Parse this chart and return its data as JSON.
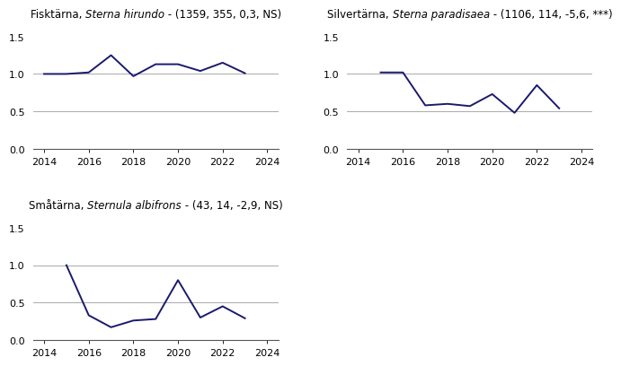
{
  "charts": [
    {
      "title_normal": "Fisktärna, ",
      "title_italic": "Sterna hirundo",
      "title_suffix": " - (1359, 355, 0,3, NS)",
      "x": [
        2014,
        2015,
        2016,
        2017,
        2018,
        2019,
        2020,
        2021,
        2022,
        2023
      ],
      "y": [
        1.0,
        1.0,
        1.02,
        1.25,
        0.97,
        1.13,
        1.13,
        1.04,
        1.15,
        1.01
      ]
    },
    {
      "title_normal": "Silvertärna, ",
      "title_italic": "Sterna paradisaea",
      "title_suffix": " - (1106, 114, -5,6, ***)",
      "x": [
        2015,
        2016,
        2017,
        2018,
        2019,
        2020,
        2021,
        2022,
        2023
      ],
      "y": [
        1.02,
        1.02,
        0.58,
        0.6,
        0.57,
        0.73,
        0.48,
        0.85,
        0.54
      ]
    },
    {
      "title_normal": "Småtärna, ",
      "title_italic": "Sternula albifrons",
      "title_suffix": " - (43, 14, -2,9, NS)",
      "x": [
        2015,
        2016,
        2017,
        2018,
        2019,
        2020,
        2021,
        2022,
        2023
      ],
      "y": [
        1.0,
        0.33,
        0.17,
        0.26,
        0.28,
        0.8,
        0.3,
        0.45,
        0.29
      ]
    }
  ],
  "line_color": "#1a1a6e",
  "hline_color": "#aaaaaa",
  "hline_values": [
    0.5,
    1.0
  ],
  "ylim": [
    0.0,
    1.65
  ],
  "yticks": [
    0.0,
    0.5,
    1.0,
    1.5
  ],
  "xlim": [
    2013.5,
    2024.5
  ],
  "xticks": [
    2014,
    2016,
    2018,
    2020,
    2022,
    2024
  ],
  "title_fontsize": 8.5,
  "tick_fontsize": 8,
  "bg_color": "#ffffff",
  "line_width": 1.4
}
